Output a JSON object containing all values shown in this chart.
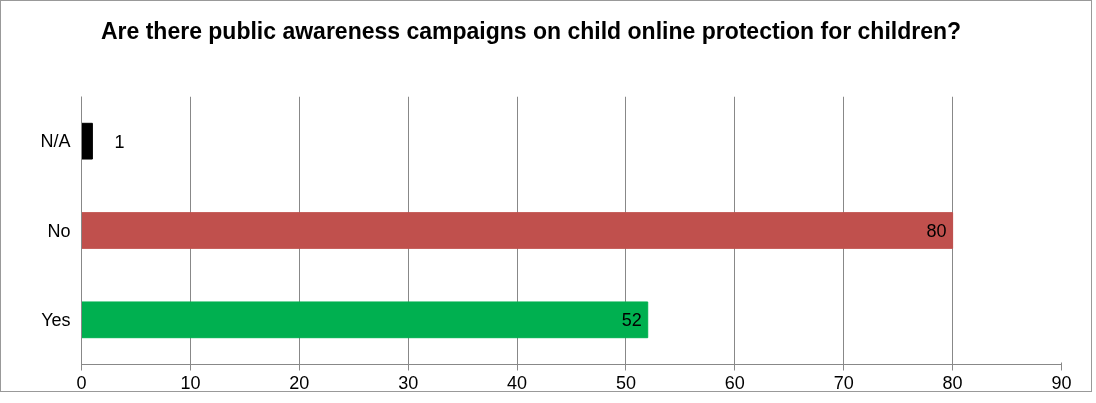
{
  "chart_data": {
    "type": "bar",
    "orientation": "horizontal",
    "title": "Are there public awareness campaigns on child online protection for children?",
    "categories": [
      "N/A",
      "No",
      "Yes"
    ],
    "values": [
      1,
      80,
      52
    ],
    "colors": [
      "#000000",
      "#c0504d",
      "#00b050"
    ],
    "xlim": [
      0,
      90
    ],
    "xticks": [
      0,
      10,
      20,
      30,
      40,
      50,
      60,
      70,
      80,
      90
    ],
    "grid": "x",
    "data_labels": true
  }
}
